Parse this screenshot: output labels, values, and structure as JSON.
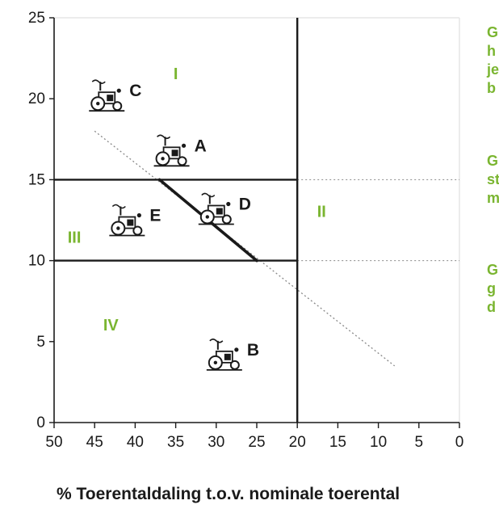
{
  "colors": {
    "accent_green": "#7ab530",
    "ink": "#1a1a1a",
    "grid": "#e6e6e6",
    "dotted": "#888888"
  },
  "chart_data": {
    "type": "scatter",
    "title": "",
    "xlabel": "% Toerentaldaling t.o.v. nominale toerental",
    "ylabel": "",
    "xlim": [
      50,
      0
    ],
    "ylim": [
      0,
      25
    ],
    "x_reversed": true,
    "grid": false,
    "xticks": [
      "50",
      "45",
      "40",
      "35",
      "30",
      "25",
      "20",
      "15",
      "10",
      "5",
      "0"
    ],
    "yticks": [
      "0",
      "5",
      "10",
      "15",
      "20",
      "25"
    ],
    "horizontal_lines": [
      {
        "y": 15,
        "from_x": 50,
        "to_x": 20,
        "style": "solid"
      },
      {
        "y": 10,
        "from_x": 50,
        "to_x": 20,
        "style": "solid"
      },
      {
        "y": 15,
        "from_x": 20,
        "to_x": 0,
        "style": "dotted"
      },
      {
        "y": 10,
        "from_x": 20,
        "to_x": 0,
        "style": "dotted"
      }
    ],
    "vertical_line": {
      "x": 20,
      "style": "solid"
    },
    "diagonal_line": {
      "dotted": [
        [
          45,
          18
        ],
        [
          8,
          3.5
        ]
      ],
      "bold": [
        [
          37,
          15
        ],
        [
          25,
          10
        ]
      ]
    },
    "regions": [
      {
        "label": "I",
        "x": 35,
        "y": 21.2
      },
      {
        "label": "II",
        "x": 17,
        "y": 12.7
      },
      {
        "label": "III",
        "x": 47.5,
        "y": 11.1
      },
      {
        "label": "IV",
        "x": 43,
        "y": 5.7
      }
    ],
    "tractors": [
      {
        "label": "C",
        "x": 43.5,
        "y": 20
      },
      {
        "label": "A",
        "x": 35.5,
        "y": 16.6
      },
      {
        "label": "D",
        "x": 30,
        "y": 13
      },
      {
        "label": "E",
        "x": 41,
        "y": 12.3
      },
      {
        "label": "B",
        "x": 29,
        "y": 4
      }
    ],
    "side_notes": [
      [
        "G",
        "h",
        "je",
        "b"
      ],
      [
        "G",
        "st",
        "m"
      ],
      [
        "G",
        "g",
        "d"
      ]
    ]
  }
}
